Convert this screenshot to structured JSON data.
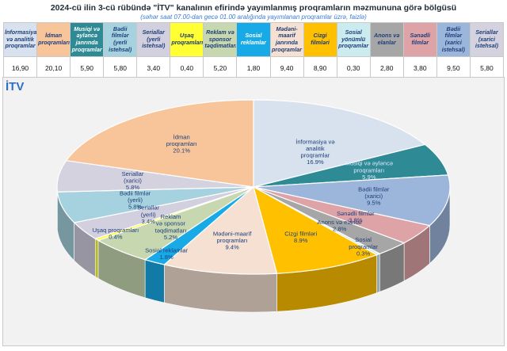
{
  "header": {
    "title": "2024-cü ilin 3-cü rübündə \"İTV\" kanalının efirində yayımlanmış proqramların məzmununa görə bölgüsü",
    "subtitle": "(səhər saat 07.00-dan gecə 01.00 aralığında yayımlanan proqramlar üzrə, faizlə)"
  },
  "chart_label": "İTV",
  "colors": {
    "informasiya": "#d8e2ef",
    "idman": "#f8c59b",
    "musiqi": "#2e8a95",
    "bedii_yerli": "#a5d2de",
    "serial_yerli": "#d2cfdf",
    "usaq": "#ffff33",
    "reklam": "#c7d8b0",
    "sosial_reklam": "#17aae6",
    "medeni": "#f5e0d2",
    "cizgi": "#ffc000",
    "sosial_yon": "#ccebef",
    "anons": "#a6a6a6",
    "senedli": "#dea3a7",
    "bedii_xarici": "#9cb5da",
    "serial_xarici": "#d5d2df"
  },
  "chart_data": {
    "type": "pie",
    "title": "2024-cü ilin 3-cü rübündə \"İTV\" kanalının efirində yayımlanmış proqramların məzmununa görə bölgüsü",
    "unit": "%",
    "slices": [
      {
        "key": "informasiya",
        "legend": "İnformasiya və analitik proqramlar",
        "table_value": "16,90",
        "label_lines": [
          "İnformasiya və",
          "analitik",
          "proqramlar"
        ],
        "value_label": "16.9%",
        "value": 16.9
      },
      {
        "key": "musiqi",
        "legend": "Musiqi və əyləncə janrında proqramlar",
        "table_value": "5,90",
        "label_lines": [
          "Musiqi və əyləncə",
          "proqramları"
        ],
        "value_label": "5.9%",
        "value": 5.9
      },
      {
        "key": "bedii_xarici",
        "legend": "Bədii filmlər (xarici istehsal)",
        "table_value": "9,50",
        "label_lines": [
          "Bədii filmlər",
          "(xarici)"
        ],
        "value_label": "9.5%",
        "value": 9.5
      },
      {
        "key": "senedli",
        "legend": "Sənədli filmlər",
        "table_value": "3,80",
        "label_lines": [
          "Sənədli filmlər"
        ],
        "value_label": "3.8%",
        "value": 3.8
      },
      {
        "key": "anons",
        "legend": "Anons və elanlar",
        "table_value": "2,80",
        "label_lines": [
          "Anons və elanlar"
        ],
        "value_label": "2.8%",
        "value": 2.8
      },
      {
        "key": "sosial_yon",
        "legend": "Sosial yönümlü proqramlar",
        "table_value": "0,30",
        "label_lines": [
          "Sosial",
          "proqramlar"
        ],
        "value_label": "0.3%",
        "value": 0.3
      },
      {
        "key": "cizgi",
        "legend": "Cizgi filmləri",
        "table_value": "8,90",
        "label_lines": [
          "Cizgi filmləri"
        ],
        "value_label": "8.9%",
        "value": 8.9
      },
      {
        "key": "medeni",
        "legend": "Mədəni-maarif janrında proqramlar",
        "table_value": "9,40",
        "label_lines": [
          "Mədəni-maarif",
          "proqramları"
        ],
        "value_label": "9.4%",
        "value": 9.4
      },
      {
        "key": "sosial_reklam",
        "legend": "Sosial reklamlar",
        "table_value": "1,80",
        "label_lines": [
          "Sosial reklamlar"
        ],
        "value_label": "1.8%",
        "value": 1.8
      },
      {
        "key": "reklam",
        "legend": "Reklam və sponsor təqdimatları",
        "table_value": "5,20",
        "label_lines": [
          "Reklam",
          "və sponsor",
          "təqdimatları"
        ],
        "value_label": "5.2%",
        "value": 5.2
      },
      {
        "key": "usaq",
        "legend": "Uşaq proqramları",
        "table_value": "0,40",
        "label_lines": [
          "Uşaq proqramları"
        ],
        "value_label": "0.4%",
        "value": 0.4
      },
      {
        "key": "serial_yerli",
        "legend": "Seriallar (yerli istehsal)",
        "table_value": "3,40",
        "label_lines": [
          "Seriallar",
          "(yerli)"
        ],
        "value_label": "3.4%",
        "value": 3.4
      },
      {
        "key": "bedii_yerli",
        "legend": "Bədii filmlər (yerli istehsal)",
        "table_value": "5,80",
        "label_lines": [
          "Bədii filmlər",
          "(yerli)"
        ],
        "value_label": "5.8%",
        "value": 5.8
      },
      {
        "key": "serial_xarici",
        "legend": "Seriallar (xarici istehsal)",
        "table_value": "5,80",
        "label_lines": [
          "Seriallar",
          "(xarici)"
        ],
        "value_label": "5.8%",
        "value": 5.8
      },
      {
        "key": "idman",
        "legend": "İdman proqramları",
        "table_value": "20,10",
        "label_lines": [
          "İdman",
          "proqramları"
        ],
        "value_label": "20.1%",
        "value": 20.1
      }
    ],
    "legend_order": [
      "informasiya",
      "idman",
      "musiqi",
      "bedii_yerli",
      "serial_yerli",
      "usaq",
      "reklam",
      "sosial_reklam",
      "medeni",
      "cizgi",
      "sosial_yon",
      "anons",
      "senedli",
      "bedii_xarici",
      "serial_xarici"
    ]
  }
}
